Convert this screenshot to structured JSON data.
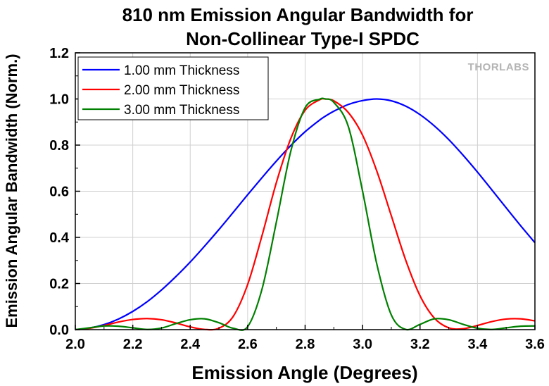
{
  "chart_data": {
    "type": "line",
    "title_line1": "810 nm Emission Angular Bandwidth for",
    "title_line2": "Non-Collinear Type-I SPDC",
    "xlabel": "Emission Angle (Degrees)",
    "ylabel": "Emission Angular Bandwidth (Norm.)",
    "xlim": [
      2.0,
      3.6
    ],
    "ylim": [
      0.0,
      1.2
    ],
    "x_ticks": [
      "2.0",
      "2.2",
      "2.4",
      "2.6",
      "2.8",
      "3.0",
      "3.2",
      "3.4",
      "3.6"
    ],
    "y_ticks": [
      "0.0",
      "0.2",
      "0.4",
      "0.6",
      "0.8",
      "1.0",
      "1.2"
    ],
    "grid": true,
    "legend_position": "top-left",
    "watermark": "THORLABS",
    "series": [
      {
        "name": "1.00 mm Thickness",
        "color": "#0000ff",
        "x": [
          2.0,
          2.05,
          2.1,
          2.15,
          2.2,
          2.25,
          2.3,
          2.35,
          2.4,
          2.45,
          2.5,
          2.55,
          2.6,
          2.65,
          2.7,
          2.75,
          2.8,
          2.85,
          2.87,
          2.9,
          2.95,
          3.0,
          3.05,
          3.1,
          3.15,
          3.2,
          3.25,
          3.3,
          3.35,
          3.4,
          3.45,
          3.5,
          3.55,
          3.6
        ],
        "y": [
          0.0,
          0.007,
          0.022,
          0.046,
          0.079,
          0.121,
          0.172,
          0.23,
          0.293,
          0.362,
          0.434,
          0.509,
          0.585,
          0.659,
          0.731,
          0.798,
          0.858,
          0.908,
          0.925,
          0.947,
          0.976,
          0.993,
          1.0,
          0.992,
          0.969,
          0.932,
          0.883,
          0.824,
          0.756,
          0.683,
          0.606,
          0.528,
          0.451,
          0.377
        ]
      },
      {
        "name": "2.00 mm Thickness",
        "color": "#ff0000",
        "x": [
          2.0,
          2.05,
          2.1,
          2.15,
          2.2,
          2.25,
          2.3,
          2.35,
          2.4,
          2.45,
          2.5,
          2.55,
          2.6,
          2.65,
          2.7,
          2.75,
          2.8,
          2.85,
          2.87,
          2.9,
          2.95,
          3.0,
          3.05,
          3.1,
          3.15,
          3.2,
          3.25,
          3.3,
          3.35,
          3.4,
          3.45,
          3.5,
          3.55,
          3.6
        ],
        "y": [
          0.0,
          0.006,
          0.018,
          0.033,
          0.044,
          0.048,
          0.043,
          0.029,
          0.012,
          0.001,
          0.006,
          0.058,
          0.196,
          0.408,
          0.638,
          0.828,
          0.951,
          0.996,
          1.0,
          0.992,
          0.942,
          0.843,
          0.686,
          0.494,
          0.302,
          0.147,
          0.05,
          0.008,
          0.004,
          0.018,
          0.035,
          0.046,
          0.047,
          0.038
        ]
      },
      {
        "name": "3.00 mm Thickness",
        "color": "#008000",
        "x": [
          2.0,
          2.05,
          2.1,
          2.15,
          2.2,
          2.25,
          2.3,
          2.35,
          2.4,
          2.45,
          2.5,
          2.55,
          2.6,
          2.65,
          2.7,
          2.75,
          2.8,
          2.85,
          2.87,
          2.9,
          2.95,
          3.0,
          3.05,
          3.1,
          3.15,
          3.2,
          3.25,
          3.3,
          3.35,
          3.4,
          3.45,
          3.5,
          3.55,
          3.6
        ],
        "y": [
          0.0,
          0.008,
          0.016,
          0.015,
          0.008,
          0.001,
          0.007,
          0.026,
          0.043,
          0.047,
          0.03,
          0.006,
          0.013,
          0.176,
          0.467,
          0.773,
          0.962,
          0.999,
          1.0,
          0.985,
          0.882,
          0.6,
          0.282,
          0.064,
          0.001,
          0.023,
          0.047,
          0.043,
          0.023,
          0.006,
          0.001,
          0.008,
          0.015,
          0.016
        ]
      }
    ]
  }
}
